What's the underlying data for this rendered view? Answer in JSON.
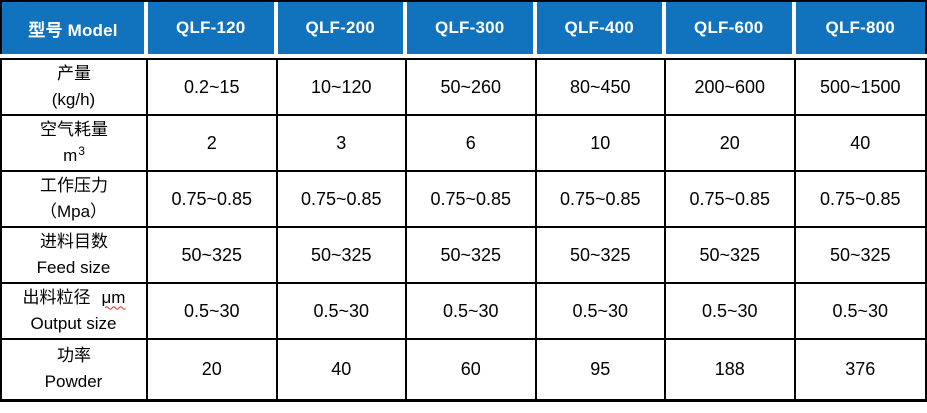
{
  "colors": {
    "header_bg": "#1172BD",
    "header_text": "#FFFFFF",
    "grid_line": "#000000",
    "body_text": "#000000",
    "spellcheck_underline": "#D93025"
  },
  "table": {
    "header": {
      "label": "型号 Model",
      "columns": [
        "QLF-120",
        "QLF-200",
        "QLF-300",
        "QLF-400",
        "QLF-600",
        "QLF-800"
      ]
    },
    "rows": [
      {
        "label_line1": "产量",
        "label_line2": "(kg/h)",
        "values": [
          "0.2~15",
          "10~120",
          "50~260",
          "80~450",
          "200~600",
          "500~1500"
        ]
      },
      {
        "label_line1": "空气耗量",
        "label_line2": "m",
        "label_line2_sup": "3",
        "values": [
          "2",
          "3",
          "6",
          "10",
          "20",
          "40"
        ]
      },
      {
        "label_line1": "工作压力",
        "label_line2": "（Mpa）",
        "values": [
          "0.75~0.85",
          "0.75~0.85",
          "0.75~0.85",
          "0.75~0.85",
          "0.75~0.85",
          "0.75~0.85"
        ]
      },
      {
        "label_line1": "进料目数",
        "label_line2": "Feed size",
        "values": [
          "50~325",
          "50~325",
          "50~325",
          "50~325",
          "50~325",
          "50~325"
        ]
      },
      {
        "label_line1": "出料粒径",
        "label_line1_um": "μm",
        "label_line2": "Output size",
        "values": [
          "0.5~30",
          "0.5~30",
          "0.5~30",
          "0.5~30",
          "0.5~30",
          "0.5~30"
        ]
      },
      {
        "label_line1": "功率",
        "label_line2": "Powder",
        "values": [
          "20",
          "40",
          "60",
          "95",
          "188",
          "376"
        ]
      }
    ]
  }
}
